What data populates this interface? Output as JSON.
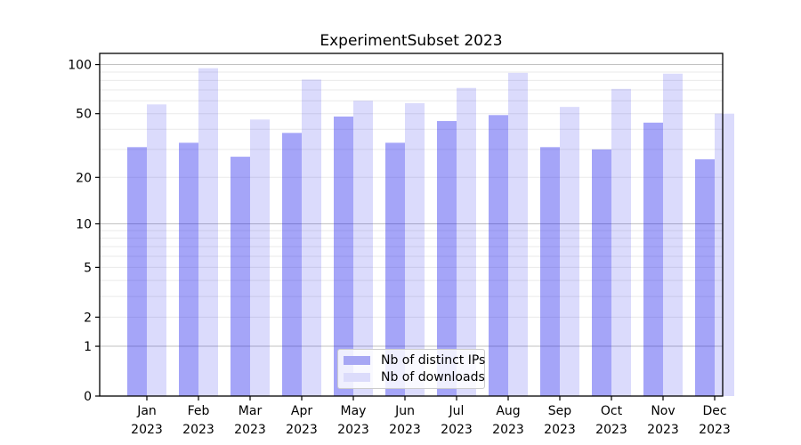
{
  "chart_data": {
    "type": "bar",
    "title": "ExperimentSubset 2023",
    "xlabel": "",
    "ylabel": "",
    "categories": [
      "Jan",
      "Feb",
      "Mar",
      "Apr",
      "May",
      "Jun",
      "Jul",
      "Aug",
      "Sep",
      "Oct",
      "Nov",
      "Dec"
    ],
    "category_year": "2023",
    "series": [
      {
        "name": "Nb of distinct IPs",
        "color": "rgba(10,10,235,0.37)",
        "swatch": "#a7a7f4",
        "values": [
          31,
          33,
          27,
          38,
          48,
          33,
          45,
          49,
          31,
          30,
          44,
          26
        ]
      },
      {
        "name": "Nb of downloads",
        "color": "rgba(10,10,235,0.145)",
        "swatch": "#dcdcfb",
        "values": [
          57,
          95,
          46,
          81,
          60,
          58,
          72,
          89,
          55,
          71,
          88,
          50
        ]
      }
    ],
    "yscale": "log1p",
    "ylim": [
      0,
      117
    ],
    "yticks": [
      0,
      1,
      2,
      5,
      10,
      20,
      50,
      100
    ],
    "major_gridlines": [
      1,
      10,
      100
    ],
    "minor_gridlines": [
      2,
      3,
      4,
      5,
      6,
      7,
      8,
      9,
      20,
      30,
      40,
      50,
      60,
      70,
      80,
      90
    ],
    "grid": true,
    "legend_position": "lower center"
  },
  "colors": {
    "major_grid": "#c2c2c2",
    "minor_grid": "#eaeaea",
    "spine": "#000000",
    "tick": "#000000",
    "tick_label": "#000000"
  }
}
